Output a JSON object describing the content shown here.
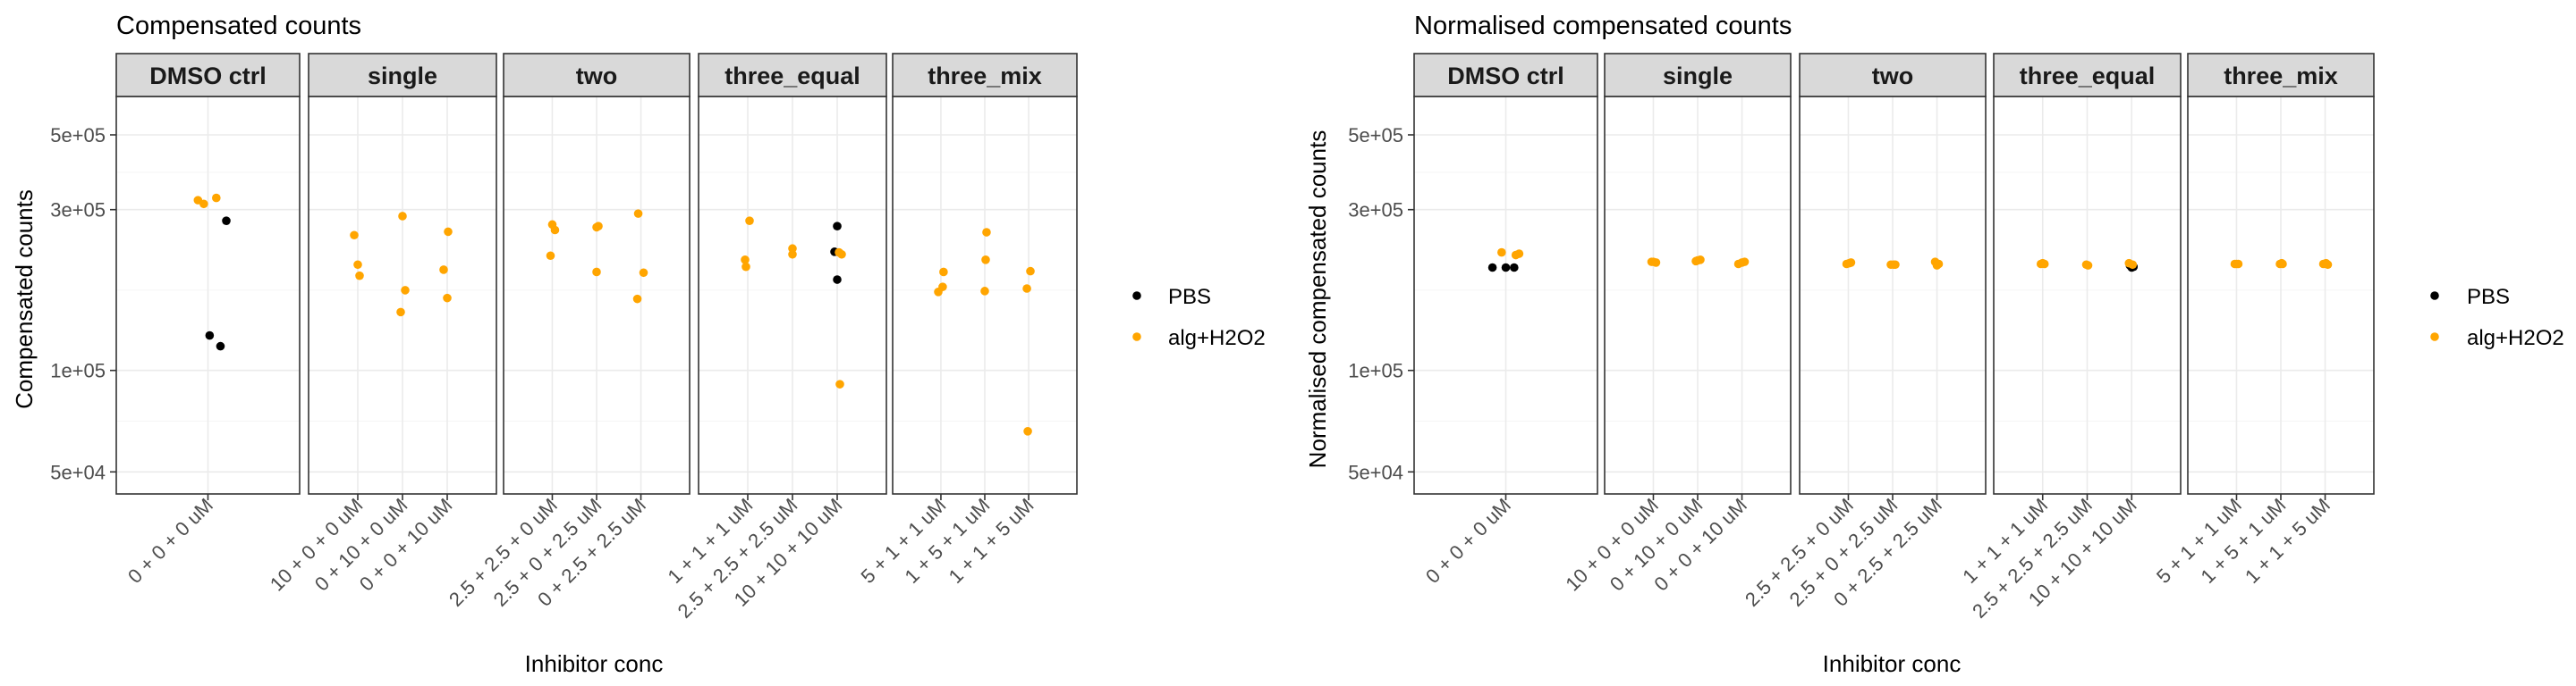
{
  "chart_data": [
    {
      "type": "scatter",
      "title": "Compensated counts",
      "xlabel": "Inhibitor conc",
      "ylabel": "Compensated counts",
      "yscale": "log10",
      "ylim": [
        43000,
        650000
      ],
      "yticks": [
        50000,
        100000,
        300000,
        500000
      ],
      "ytick_labels": [
        "5e+04",
        "1e+05",
        "3e+05",
        "5e+05"
      ],
      "grid": true,
      "legend_position": "right",
      "legend": [
        {
          "label": "PBS",
          "color": "#000000"
        },
        {
          "label": "alg+H2O2",
          "color": "#FFA500"
        }
      ],
      "facets": [
        {
          "label": "DMSO ctrl",
          "categories": [
            "0 + 0 + 0 uM"
          ],
          "points": [
            {
              "x": 0,
              "dx": -0.12,
              "y": 320000,
              "series": "alg+H2O2"
            },
            {
              "x": 0,
              "dx": -0.05,
              "y": 312000,
              "series": "alg+H2O2"
            },
            {
              "x": 0,
              "dx": 0.1,
              "y": 325000,
              "series": "alg+H2O2"
            },
            {
              "x": 0,
              "dx": 0.22,
              "y": 278000,
              "series": "PBS"
            },
            {
              "x": 0,
              "dx": 0.02,
              "y": 127000,
              "series": "PBS"
            },
            {
              "x": 0,
              "dx": 0.15,
              "y": 118000,
              "series": "PBS"
            }
          ]
        },
        {
          "label": "single",
          "categories": [
            "10 + 0 + 0 uM",
            "0 + 10 + 0 uM",
            "0 + 0 + 10 uM"
          ],
          "points": [
            {
              "x": 0,
              "dx": -0.08,
              "y": 252000,
              "series": "alg+H2O2"
            },
            {
              "x": 0,
              "dx": 0.0,
              "y": 206000,
              "series": "alg+H2O2"
            },
            {
              "x": 0,
              "dx": 0.04,
              "y": 191000,
              "series": "alg+H2O2"
            },
            {
              "x": 1,
              "dx": 0.0,
              "y": 287000,
              "series": "alg+H2O2"
            },
            {
              "x": 1,
              "dx": 0.06,
              "y": 173000,
              "series": "alg+H2O2"
            },
            {
              "x": 1,
              "dx": -0.04,
              "y": 149000,
              "series": "alg+H2O2"
            },
            {
              "x": 2,
              "dx": -0.08,
              "y": 199000,
              "series": "alg+H2O2"
            },
            {
              "x": 2,
              "dx": 0.02,
              "y": 258000,
              "series": "alg+H2O2"
            },
            {
              "x": 2,
              "dx": 0.0,
              "y": 164000,
              "series": "alg+H2O2"
            }
          ]
        },
        {
          "label": "two",
          "categories": [
            "2.5 + 2.5 + 0 uM",
            "2.5 + 0 + 2.5 uM",
            "0 + 2.5 + 2.5 uM"
          ],
          "points": [
            {
              "x": 0,
              "dx": 0.0,
              "y": 271000,
              "series": "alg+H2O2"
            },
            {
              "x": 0,
              "dx": 0.06,
              "y": 261000,
              "series": "alg+H2O2"
            },
            {
              "x": 0,
              "dx": -0.04,
              "y": 219000,
              "series": "alg+H2O2"
            },
            {
              "x": 1,
              "dx": 0.0,
              "y": 266000,
              "series": "alg+H2O2"
            },
            {
              "x": 1,
              "dx": 0.04,
              "y": 268000,
              "series": "alg+H2O2"
            },
            {
              "x": 1,
              "dx": 0.0,
              "y": 196000,
              "series": "alg+H2O2"
            },
            {
              "x": 2,
              "dx": -0.06,
              "y": 292000,
              "series": "alg+H2O2"
            },
            {
              "x": 2,
              "dx": 0.06,
              "y": 195000,
              "series": "alg+H2O2"
            },
            {
              "x": 2,
              "dx": -0.08,
              "y": 163000,
              "series": "alg+H2O2"
            }
          ]
        },
        {
          "label": "three_equal",
          "categories": [
            "1 + 1 + 1 uM",
            "2.5 + 2.5 + 2.5 uM",
            "10 + 10 + 10 uM"
          ],
          "points": [
            {
              "x": 0,
              "dx": 0.04,
              "y": 278000,
              "series": "alg+H2O2"
            },
            {
              "x": 0,
              "dx": -0.06,
              "y": 213000,
              "series": "alg+H2O2"
            },
            {
              "x": 0,
              "dx": -0.04,
              "y": 203000,
              "series": "alg+H2O2"
            },
            {
              "x": 1,
              "dx": 0.0,
              "y": 230000,
              "series": "alg+H2O2"
            },
            {
              "x": 1,
              "dx": 0.0,
              "y": 221000,
              "series": "alg+H2O2"
            },
            {
              "x": 2,
              "dx": 0.0,
              "y": 268000,
              "series": "PBS"
            },
            {
              "x": 2,
              "dx": -0.06,
              "y": 225000,
              "series": "PBS"
            },
            {
              "x": 2,
              "dx": 0.0,
              "y": 186000,
              "series": "PBS"
            },
            {
              "x": 2,
              "dx": 0.04,
              "y": 224000,
              "series": "alg+H2O2"
            },
            {
              "x": 2,
              "dx": 0.1,
              "y": 221000,
              "series": "alg+H2O2"
            },
            {
              "x": 2,
              "dx": 0.06,
              "y": 91000,
              "series": "alg+H2O2"
            }
          ]
        },
        {
          "label": "three_mix",
          "categories": [
            "5 + 1 + 1 uM",
            "1 + 5 + 1 uM",
            "1 + 1 + 5 uM"
          ],
          "points": [
            {
              "x": 0,
              "dx": 0.06,
              "y": 196000,
              "series": "alg+H2O2"
            },
            {
              "x": 0,
              "dx": 0.04,
              "y": 177000,
              "series": "alg+H2O2"
            },
            {
              "x": 0,
              "dx": -0.06,
              "y": 171000,
              "series": "alg+H2O2"
            },
            {
              "x": 1,
              "dx": 0.04,
              "y": 257000,
              "series": "alg+H2O2"
            },
            {
              "x": 1,
              "dx": 0.02,
              "y": 213000,
              "series": "alg+H2O2"
            },
            {
              "x": 1,
              "dx": 0.0,
              "y": 172000,
              "series": "alg+H2O2"
            },
            {
              "x": 2,
              "dx": 0.04,
              "y": 197000,
              "series": "alg+H2O2"
            },
            {
              "x": 2,
              "dx": -0.04,
              "y": 175000,
              "series": "alg+H2O2"
            },
            {
              "x": 2,
              "dx": -0.02,
              "y": 66000,
              "series": "alg+H2O2"
            }
          ]
        }
      ]
    },
    {
      "type": "scatter",
      "title": "Normalised compensated counts",
      "xlabel": "Inhibitor conc",
      "ylabel": "Normalised compensated counts",
      "yscale": "log10",
      "ylim": [
        43000,
        650000
      ],
      "yticks": [
        50000,
        100000,
        300000,
        500000
      ],
      "ytick_labels": [
        "5e+04",
        "1e+05",
        "3e+05",
        "5e+05"
      ],
      "grid": true,
      "legend_position": "right",
      "legend": [
        {
          "label": "PBS",
          "color": "#000000"
        },
        {
          "label": "alg+H2O2",
          "color": "#FFA500"
        }
      ],
      "facets": [
        {
          "label": "DMSO ctrl",
          "categories": [
            "0 + 0 + 0 uM"
          ],
          "points": [
            {
              "x": 0,
              "dx": -0.05,
              "y": 224000,
              "series": "alg+H2O2"
            },
            {
              "x": 0,
              "dx": 0.12,
              "y": 220000,
              "series": "alg+H2O2"
            },
            {
              "x": 0,
              "dx": 0.16,
              "y": 222000,
              "series": "alg+H2O2"
            },
            {
              "x": 0,
              "dx": -0.16,
              "y": 202000,
              "series": "PBS"
            },
            {
              "x": 0,
              "dx": 0.0,
              "y": 202000,
              "series": "PBS"
            },
            {
              "x": 0,
              "dx": 0.1,
              "y": 202000,
              "series": "PBS"
            }
          ]
        },
        {
          "label": "single",
          "categories": [
            "10 + 0 + 0 uM",
            "0 + 10 + 0 uM",
            "0 + 0 + 10 uM"
          ],
          "points": [
            {
              "x": 0,
              "dx": -0.04,
              "y": 210000,
              "series": "alg+H2O2"
            },
            {
              "x": 0,
              "dx": 0.0,
              "y": 210000,
              "series": "alg+H2O2"
            },
            {
              "x": 0,
              "dx": 0.06,
              "y": 209000,
              "series": "alg+H2O2"
            },
            {
              "x": 1,
              "dx": -0.04,
              "y": 211000,
              "series": "alg+H2O2"
            },
            {
              "x": 1,
              "dx": 0.0,
              "y": 212000,
              "series": "alg+H2O2"
            },
            {
              "x": 1,
              "dx": 0.06,
              "y": 213000,
              "series": "alg+H2O2"
            },
            {
              "x": 2,
              "dx": -0.08,
              "y": 207000,
              "series": "alg+H2O2"
            },
            {
              "x": 2,
              "dx": 0.0,
              "y": 209000,
              "series": "alg+H2O2"
            },
            {
              "x": 2,
              "dx": 0.06,
              "y": 210000,
              "series": "alg+H2O2"
            }
          ]
        },
        {
          "label": "two",
          "categories": [
            "2.5 + 2.5 + 0 uM",
            "2.5 + 0 + 2.5 uM",
            "0 + 2.5 + 2.5 uM"
          ],
          "points": [
            {
              "x": 0,
              "dx": -0.04,
              "y": 207000,
              "series": "alg+H2O2"
            },
            {
              "x": 0,
              "dx": 0.02,
              "y": 208000,
              "series": "alg+H2O2"
            },
            {
              "x": 0,
              "dx": 0.06,
              "y": 209000,
              "series": "alg+H2O2"
            },
            {
              "x": 1,
              "dx": -0.04,
              "y": 206000,
              "series": "alg+H2O2"
            },
            {
              "x": 1,
              "dx": 0.02,
              "y": 206000,
              "series": "alg+H2O2"
            },
            {
              "x": 1,
              "dx": 0.06,
              "y": 206000,
              "series": "alg+H2O2"
            },
            {
              "x": 2,
              "dx": -0.04,
              "y": 210000,
              "series": "alg+H2O2"
            },
            {
              "x": 2,
              "dx": 0.0,
              "y": 205000,
              "series": "alg+H2O2"
            },
            {
              "x": 2,
              "dx": 0.04,
              "y": 207000,
              "series": "alg+H2O2"
            }
          ]
        },
        {
          "label": "three_equal",
          "categories": [
            "1 + 1 + 1 uM",
            "2.5 + 2.5 + 2.5 uM",
            "10 + 10 + 10 uM"
          ],
          "points": [
            {
              "x": 0,
              "dx": -0.04,
              "y": 207000,
              "series": "alg+H2O2"
            },
            {
              "x": 0,
              "dx": 0.0,
              "y": 208000,
              "series": "alg+H2O2"
            },
            {
              "x": 0,
              "dx": 0.04,
              "y": 207000,
              "series": "alg+H2O2"
            },
            {
              "x": 1,
              "dx": -0.02,
              "y": 206000,
              "series": "alg+H2O2"
            },
            {
              "x": 1,
              "dx": 0.02,
              "y": 205000,
              "series": "alg+H2O2"
            },
            {
              "x": 2,
              "dx": -0.04,
              "y": 205000,
              "series": "PBS"
            },
            {
              "x": 2,
              "dx": 0.0,
              "y": 202000,
              "series": "PBS"
            },
            {
              "x": 2,
              "dx": 0.04,
              "y": 203000,
              "series": "PBS"
            },
            {
              "x": 2,
              "dx": -0.06,
              "y": 208000,
              "series": "alg+H2O2"
            },
            {
              "x": 2,
              "dx": 0.02,
              "y": 206000,
              "series": "alg+H2O2"
            }
          ]
        },
        {
          "label": "three_mix",
          "categories": [
            "5 + 1 + 1 uM",
            "1 + 5 + 1 uM",
            "1 + 1 + 5 uM"
          ],
          "points": [
            {
              "x": 0,
              "dx": -0.04,
              "y": 207000,
              "series": "alg+H2O2"
            },
            {
              "x": 0,
              "dx": 0.0,
              "y": 207000,
              "series": "alg+H2O2"
            },
            {
              "x": 0,
              "dx": 0.04,
              "y": 207000,
              "series": "alg+H2O2"
            },
            {
              "x": 1,
              "dx": -0.02,
              "y": 207000,
              "series": "alg+H2O2"
            },
            {
              "x": 1,
              "dx": 0.02,
              "y": 208000,
              "series": "alg+H2O2"
            },
            {
              "x": 1,
              "dx": 0.04,
              "y": 207000,
              "series": "alg+H2O2"
            },
            {
              "x": 2,
              "dx": -0.04,
              "y": 207000,
              "series": "alg+H2O2"
            },
            {
              "x": 2,
              "dx": 0.02,
              "y": 208000,
              "series": "alg+H2O2"
            },
            {
              "x": 2,
              "dx": 0.06,
              "y": 206000,
              "series": "alg+H2O2"
            }
          ]
        }
      ]
    }
  ]
}
